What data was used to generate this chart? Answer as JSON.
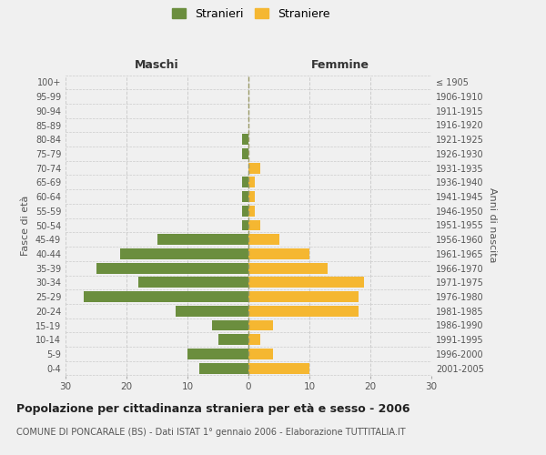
{
  "age_groups": [
    "0-4",
    "5-9",
    "10-14",
    "15-19",
    "20-24",
    "25-29",
    "30-34",
    "35-39",
    "40-44",
    "45-49",
    "50-54",
    "55-59",
    "60-64",
    "65-69",
    "70-74",
    "75-79",
    "80-84",
    "85-89",
    "90-94",
    "95-99",
    "100+"
  ],
  "birth_years": [
    "2001-2005",
    "1996-2000",
    "1991-1995",
    "1986-1990",
    "1981-1985",
    "1976-1980",
    "1971-1975",
    "1966-1970",
    "1961-1965",
    "1956-1960",
    "1951-1955",
    "1946-1950",
    "1941-1945",
    "1936-1940",
    "1931-1935",
    "1926-1930",
    "1921-1925",
    "1916-1920",
    "1911-1915",
    "1906-1910",
    "≤ 1905"
  ],
  "maschi": [
    8,
    10,
    5,
    6,
    12,
    27,
    18,
    25,
    21,
    15,
    1,
    1,
    1,
    1,
    0,
    1,
    1,
    0,
    0,
    0,
    0
  ],
  "femmine": [
    10,
    4,
    2,
    4,
    18,
    18,
    19,
    13,
    10,
    5,
    2,
    1,
    1,
    1,
    2,
    0,
    0,
    0,
    0,
    0,
    0
  ],
  "maschi_color": "#6b8e3e",
  "femmine_color": "#f5b731",
  "bg_color": "#f0f0f0",
  "grid_color": "#cccccc",
  "title": "Popolazione per cittadinanza straniera per età e sesso - 2006",
  "subtitle": "COMUNE DI PONCARALE (BS) - Dati ISTAT 1° gennaio 2006 - Elaborazione TUTTITALIA.IT",
  "xlabel_left": "Maschi",
  "xlabel_right": "Femmine",
  "ylabel_left": "Fasce di età",
  "ylabel_right": "Anni di nascita",
  "legend_maschi": "Stranieri",
  "legend_femmine": "Straniere",
  "xlim": 30,
  "bar_height": 0.75
}
